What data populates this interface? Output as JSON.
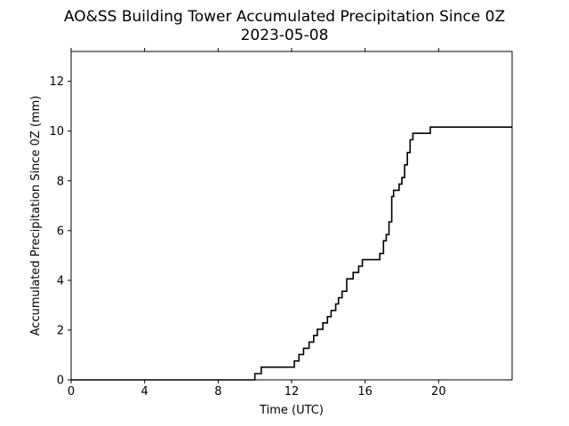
{
  "chart_data": {
    "type": "line",
    "title": "AO&SS Building Tower Accumulated Precipitation Since 0Z",
    "subtitle": "2023-05-08",
    "xlabel": "Time (UTC)",
    "ylabel": "Accumulated Precipitation Since 0Z (mm)",
    "xlim": [
      0,
      24
    ],
    "ylim": [
      0,
      13.2
    ],
    "xticks": [
      0,
      4,
      8,
      12,
      16,
      20
    ],
    "xtick_labels": [
      "0",
      "4",
      "8",
      "12",
      "16",
      "20"
    ],
    "yticks": [
      0,
      2,
      4,
      6,
      8,
      10,
      12
    ],
    "ytick_labels": [
      "0",
      "2",
      "4",
      "6",
      "8",
      "10",
      "12"
    ],
    "grid": false,
    "step": true,
    "series": [
      {
        "color": "#000000",
        "x": [
          0,
          10.0,
          10.35,
          12.15,
          12.4,
          12.65,
          12.95,
          13.2,
          13.4,
          13.7,
          13.95,
          14.15,
          14.4,
          14.55,
          14.75,
          15.0,
          15.35,
          15.65,
          15.85,
          16.8,
          17.0,
          17.15,
          17.3,
          17.45,
          17.55,
          17.65,
          17.85,
          18.0,
          18.15,
          18.3,
          18.45,
          18.6,
          18.8,
          19.55,
          24
        ],
        "y": [
          0,
          0.25,
          0.51,
          0.76,
          1.02,
          1.27,
          1.52,
          1.78,
          2.03,
          2.29,
          2.54,
          2.79,
          3.05,
          3.3,
          3.56,
          4.06,
          4.32,
          4.57,
          4.83,
          5.08,
          5.59,
          5.84,
          6.35,
          7.37,
          7.62,
          7.62,
          7.87,
          8.13,
          8.64,
          9.14,
          9.65,
          9.91,
          9.91,
          10.16,
          10.16
        ]
      }
    ]
  }
}
